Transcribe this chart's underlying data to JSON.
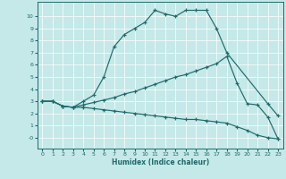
{
  "xlabel": "Humidex (Indice chaleur)",
  "bg_color": "#c5e8e8",
  "line_color": "#1e6b6b",
  "grid_color": "#ffffff",
  "xlim": [
    -0.5,
    23.5
  ],
  "ylim": [
    -0.9,
    11.2
  ],
  "xtick_vals": [
    0,
    1,
    2,
    3,
    4,
    5,
    6,
    7,
    8,
    9,
    10,
    11,
    12,
    13,
    14,
    15,
    16,
    17,
    18,
    19,
    20,
    21,
    22,
    23
  ],
  "ytick_vals": [
    0,
    1,
    2,
    3,
    4,
    5,
    6,
    7,
    8,
    9,
    10
  ],
  "ytick_labels": [
    "-0",
    "1",
    "2",
    "3",
    "4",
    "5",
    "6",
    "7",
    "8",
    "9",
    "10"
  ],
  "curve1_x": [
    0,
    1,
    2,
    3,
    4,
    5,
    6,
    7,
    8,
    9,
    10,
    11,
    12,
    13,
    14,
    15,
    16,
    17,
    18,
    22,
    23
  ],
  "curve1_y": [
    3.0,
    3.0,
    2.6,
    2.5,
    3.0,
    3.5,
    5.0,
    7.5,
    8.5,
    9.0,
    9.5,
    10.5,
    10.2,
    10.0,
    10.5,
    10.5,
    10.5,
    9.0,
    7.0,
    2.8,
    1.8
  ],
  "curve2_x": [
    0,
    1,
    2,
    3,
    4,
    5,
    6,
    7,
    8,
    9,
    10,
    11,
    12,
    13,
    14,
    15,
    16,
    17,
    18,
    19,
    20,
    21,
    22,
    23
  ],
  "curve2_y": [
    3.0,
    3.0,
    2.6,
    2.5,
    2.7,
    2.9,
    3.1,
    3.3,
    3.6,
    3.8,
    4.1,
    4.4,
    4.7,
    5.0,
    5.2,
    5.5,
    5.8,
    6.1,
    6.7,
    4.5,
    2.8,
    2.7,
    1.7,
    -0.1
  ],
  "curve3_x": [
    0,
    1,
    2,
    3,
    4,
    5,
    6,
    7,
    8,
    9,
    10,
    11,
    12,
    13,
    14,
    15,
    16,
    17,
    18,
    19,
    20,
    21,
    22,
    23
  ],
  "curve3_y": [
    3.0,
    3.0,
    2.6,
    2.5,
    2.5,
    2.4,
    2.3,
    2.2,
    2.1,
    2.0,
    1.9,
    1.8,
    1.7,
    1.6,
    1.5,
    1.5,
    1.4,
    1.3,
    1.2,
    0.9,
    0.6,
    0.2,
    0.0,
    -0.1
  ]
}
